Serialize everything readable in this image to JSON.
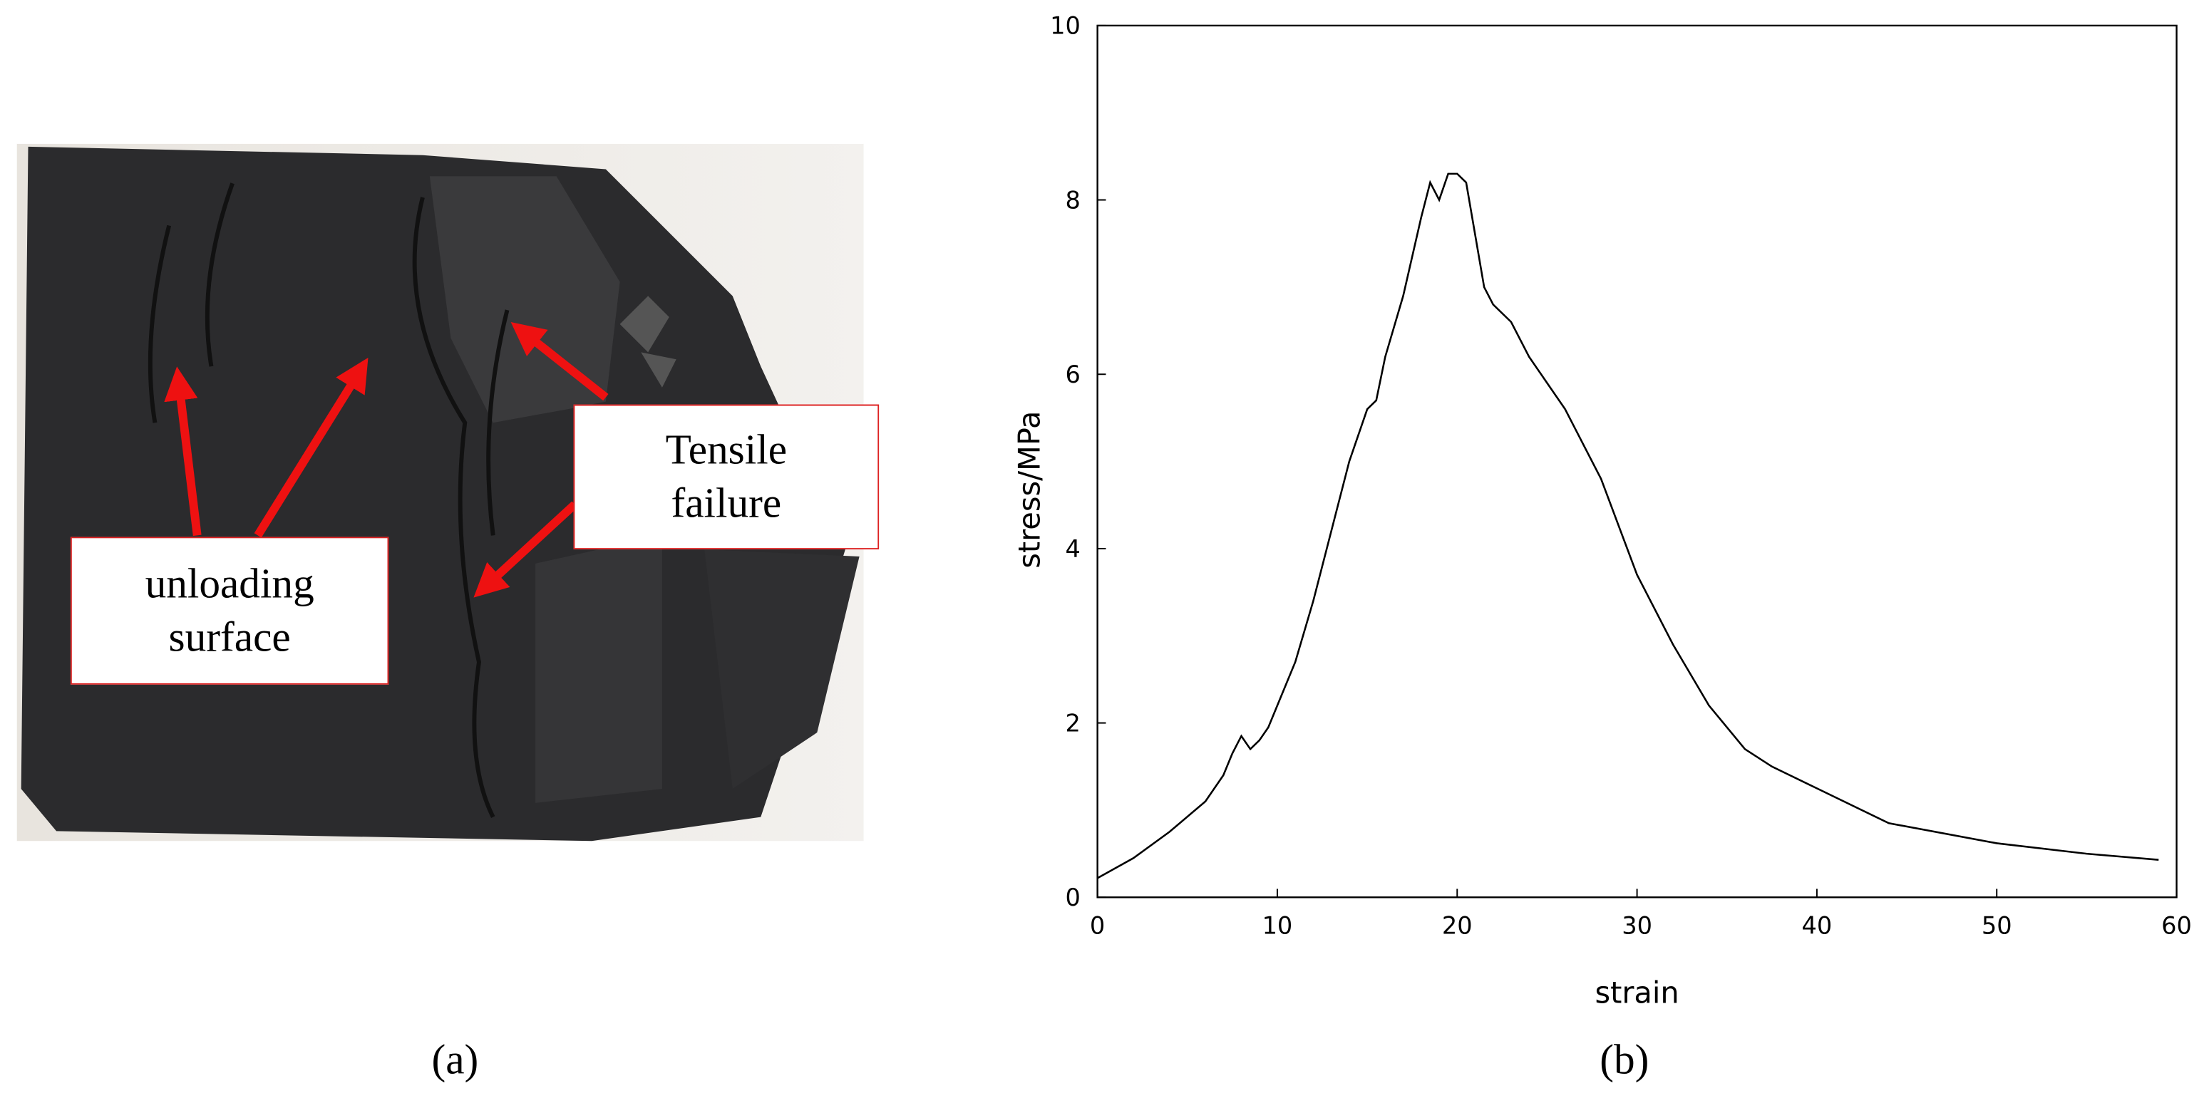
{
  "photo_panel": {
    "annotations": [
      "unloading surface",
      "Tensile failure"
    ],
    "caption": "(a)"
  },
  "chart_data": {
    "type": "line",
    "caption": "(b)",
    "x_label": "strain",
    "y_label": "stress/MPa",
    "x": [
      0,
      2,
      4,
      6,
      7,
      7.5,
      8,
      8.5,
      9,
      9.5,
      10,
      11,
      12,
      13,
      14,
      15,
      15.5,
      16,
      17,
      18,
      18.5,
      19,
      19.5,
      20,
      20.5,
      21,
      21.5,
      22,
      23,
      24,
      25,
      26,
      28,
      30,
      32,
      34,
      36,
      37.5,
      40,
      44,
      50,
      55,
      59
    ],
    "series": [
      {
        "color": "#000000",
        "values": [
          0.22,
          0.45,
          0.75,
          1.1,
          1.4,
          1.65,
          1.85,
          1.7,
          1.8,
          1.95,
          2.2,
          2.7,
          3.4,
          4.2,
          5.0,
          5.6,
          5.7,
          6.2,
          6.9,
          7.8,
          8.2,
          8.0,
          8.3,
          8.3,
          8.2,
          7.6,
          7.0,
          6.8,
          6.6,
          6.2,
          5.9,
          5.6,
          4.8,
          3.7,
          2.9,
          2.2,
          1.7,
          1.5,
          1.25,
          0.85,
          0.62,
          0.5,
          0.43
        ]
      }
    ],
    "xlim": [
      0,
      60
    ],
    "ylim": [
      0,
      10
    ],
    "xticks": [
      0,
      10,
      20,
      30,
      40,
      50,
      60
    ],
    "yticks": [
      0,
      2,
      4,
      6,
      8,
      10
    ]
  }
}
